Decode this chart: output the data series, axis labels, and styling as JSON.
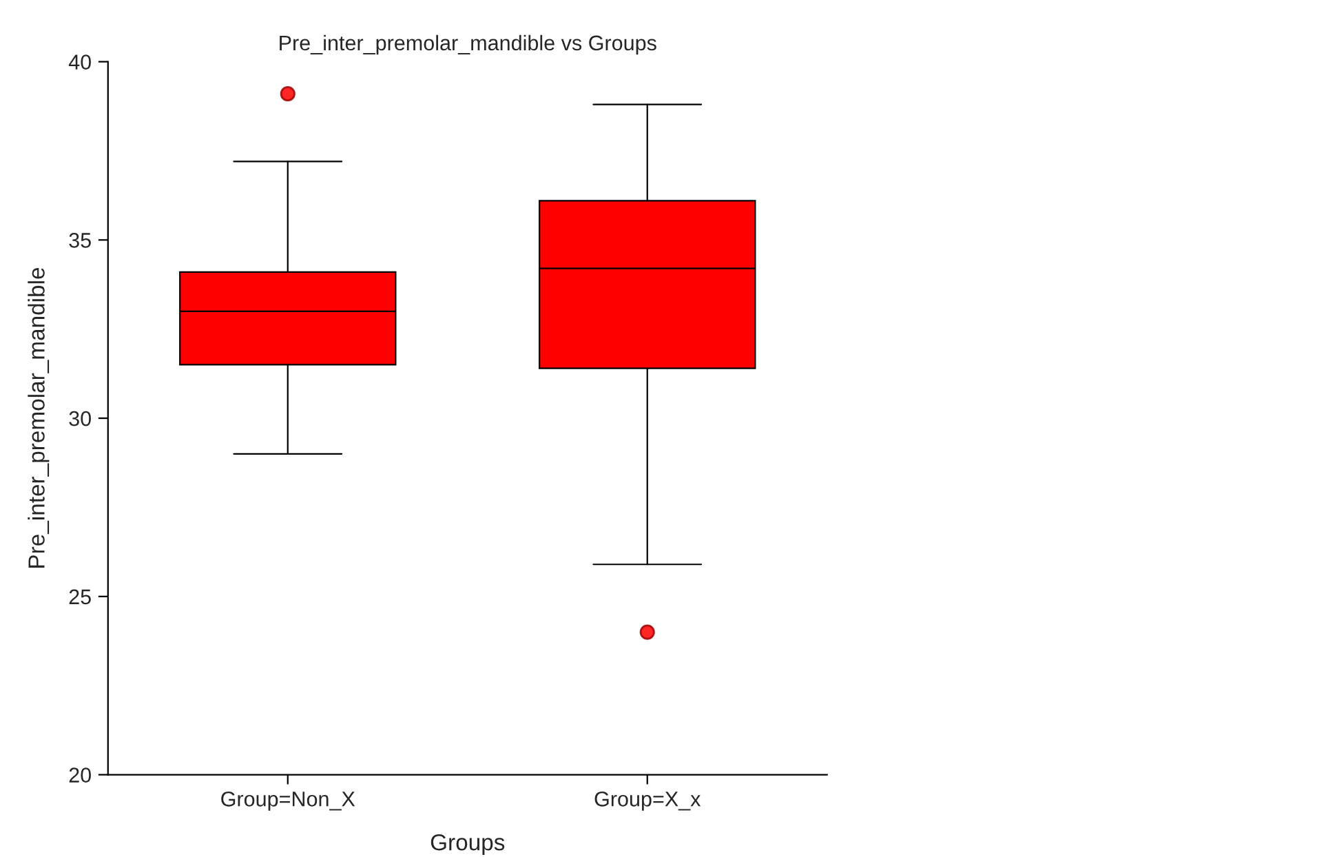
{
  "chart_data": {
    "type": "box",
    "title": "Pre_inter_premolar_mandible vs Groups",
    "xlabel": "Groups",
    "ylabel": "Pre_inter_premolar_mandible",
    "categories": [
      "Group=Non_X",
      "Group=X_x"
    ],
    "boxes": [
      {
        "low": 29.0,
        "q1": 31.5,
        "median": 33.0,
        "q3": 34.1,
        "high": 37.2,
        "outliers": [
          39.1
        ]
      },
      {
        "low": 25.9,
        "q1": 31.4,
        "median": 34.2,
        "q3": 36.1,
        "high": 38.8,
        "outliers": [
          24.0
        ]
      }
    ],
    "color": "#ff0000",
    "ylim": [
      20,
      40
    ],
    "yticks": [
      20,
      25,
      30,
      35,
      40
    ],
    "grid": false
  }
}
